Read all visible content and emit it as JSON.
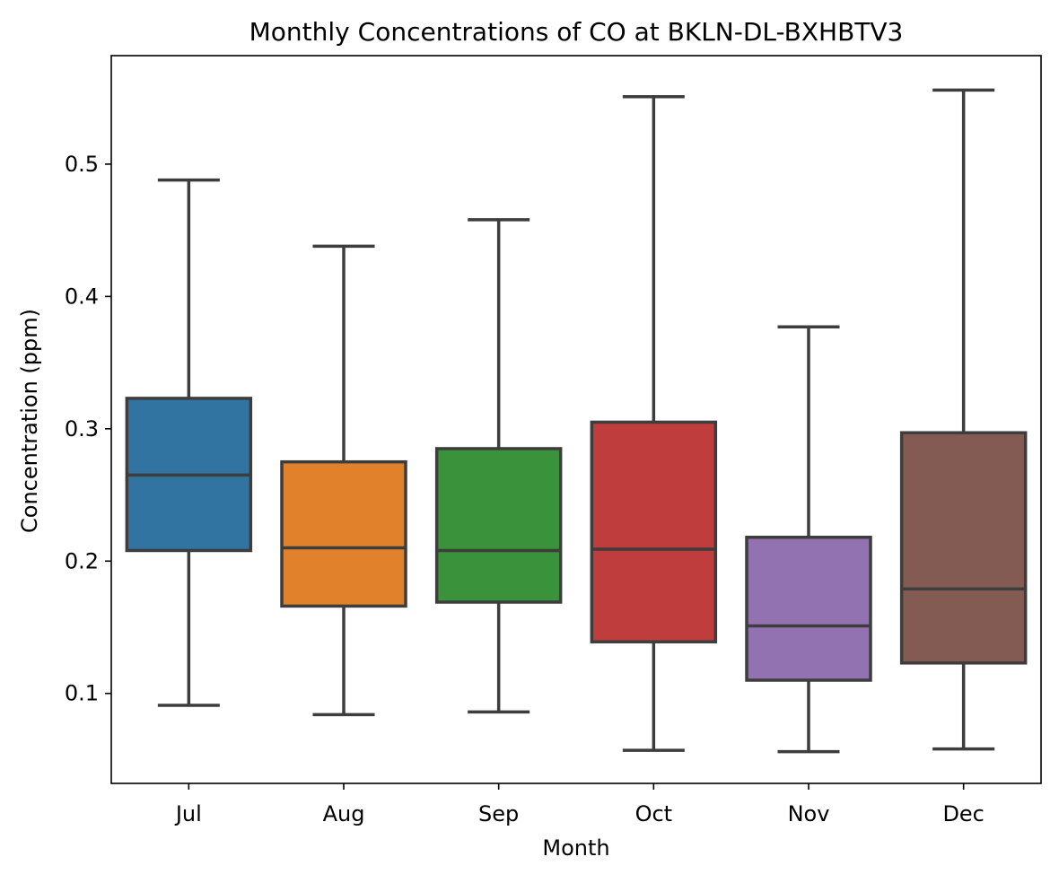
{
  "chart_data": {
    "type": "box",
    "title": "Monthly Concentrations of CO at BKLN-DL-BXHBTV3",
    "xlabel": "Month",
    "ylabel": "Concentration (ppm)",
    "ylim": [
      0.032,
      0.582
    ],
    "yticks": [
      0.1,
      0.2,
      0.3,
      0.4,
      0.5
    ],
    "ytick_labels": [
      "0.1",
      "0.2",
      "0.3",
      "0.4",
      "0.5"
    ],
    "grid": false,
    "categories": [
      "Jul",
      "Aug",
      "Sep",
      "Oct",
      "Nov",
      "Dec"
    ],
    "boxes": [
      {
        "category": "Jul",
        "whislo": 0.091,
        "q1": 0.208,
        "med": 0.265,
        "q3": 0.323,
        "whishi": 0.488,
        "color": "#3274a1"
      },
      {
        "category": "Aug",
        "whislo": 0.084,
        "q1": 0.166,
        "med": 0.21,
        "q3": 0.275,
        "whishi": 0.438,
        "color": "#e1812c"
      },
      {
        "category": "Sep",
        "whislo": 0.086,
        "q1": 0.169,
        "med": 0.208,
        "q3": 0.285,
        "whishi": 0.458,
        "color": "#3a923a"
      },
      {
        "category": "Oct",
        "whislo": 0.057,
        "q1": 0.139,
        "med": 0.209,
        "q3": 0.305,
        "whishi": 0.551,
        "color": "#c03d3e"
      },
      {
        "category": "Nov",
        "whislo": 0.056,
        "q1": 0.11,
        "med": 0.151,
        "q3": 0.218,
        "whishi": 0.377,
        "color": "#9372b2"
      },
      {
        "category": "Dec",
        "whislo": 0.058,
        "q1": 0.123,
        "med": 0.179,
        "q3": 0.297,
        "whishi": 0.556,
        "color": "#845b53"
      }
    ],
    "line_color": "#3d3d3d"
  }
}
